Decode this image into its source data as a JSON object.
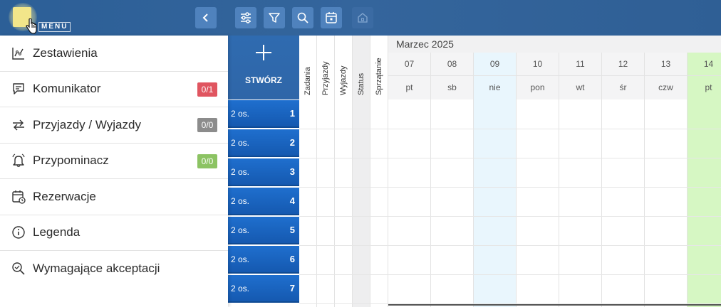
{
  "topbar": {
    "menu_label": "MENU",
    "colors": {
      "bar": "#2f6099",
      "button": "#4f82bd"
    },
    "tools": [
      {
        "name": "settings-sliders-icon"
      },
      {
        "name": "filter-icon"
      },
      {
        "name": "search-icon"
      },
      {
        "name": "calendar-icon"
      },
      {
        "name": "home-icon"
      }
    ]
  },
  "sidebar": {
    "items": [
      {
        "label": "Zestawienia",
        "icon": "chart-icon",
        "badge": null
      },
      {
        "label": "Komunikator",
        "icon": "chat-icon",
        "badge": "0/1",
        "badge_color": "#e05560"
      },
      {
        "label": "Przyjazdy / Wyjazdy",
        "icon": "arrows-icon",
        "badge": "0/0",
        "badge_color": "#8c8c8c"
      },
      {
        "label": "Przypominacz",
        "icon": "bell-icon",
        "badge": "0/0",
        "badge_color": "#8cc363"
      },
      {
        "label": "Rezerwacje",
        "icon": "calendar-clock-icon",
        "badge": null
      },
      {
        "label": "Legenda",
        "icon": "info-icon",
        "badge": null
      },
      {
        "label": "Wymagające akceptacji",
        "icon": "search-check-icon",
        "badge": null
      }
    ]
  },
  "calendar": {
    "create_label": "STWÓRZ",
    "columns": [
      "Zadania",
      "Przyjazdy",
      "Wyjazdy",
      "Status",
      "Sprzątanie"
    ],
    "month": "Marzec 2025",
    "days": [
      {
        "num": "07",
        "name": "pt",
        "highlight": "none"
      },
      {
        "num": "08",
        "name": "sb",
        "highlight": "none"
      },
      {
        "num": "09",
        "name": "nie",
        "highlight": "today"
      },
      {
        "num": "10",
        "name": "pon",
        "highlight": "none"
      },
      {
        "num": "11",
        "name": "wt",
        "highlight": "none"
      },
      {
        "num": "12",
        "name": "śr",
        "highlight": "none"
      },
      {
        "num": "13",
        "name": "czw",
        "highlight": "none"
      },
      {
        "num": "14",
        "name": "pt",
        "highlight": "selected"
      }
    ],
    "rooms": [
      {
        "occupancy": "2 os.",
        "number": "1"
      },
      {
        "occupancy": "2 os.",
        "number": "2"
      },
      {
        "occupancy": "2 os.",
        "number": "3"
      },
      {
        "occupancy": "2 os.",
        "number": "4"
      },
      {
        "occupancy": "2 os.",
        "number": "5"
      },
      {
        "occupancy": "2 os.",
        "number": "6"
      },
      {
        "occupancy": "2 os.",
        "number": "7"
      }
    ],
    "colors": {
      "today": "#e9f6fd",
      "selected": "#d6f7c3",
      "room": "#1a66c4"
    }
  }
}
